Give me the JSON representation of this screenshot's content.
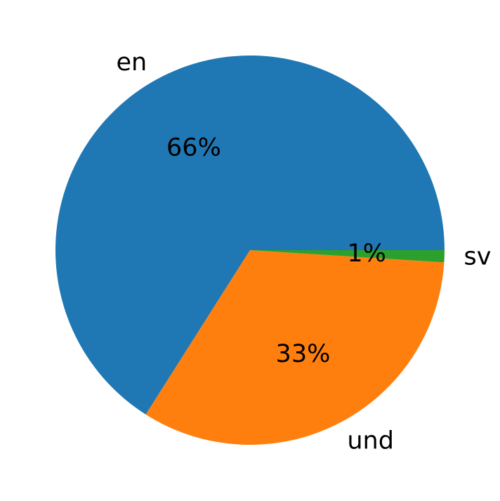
{
  "chart_data": {
    "type": "pie",
    "categories": [
      "en",
      "und",
      "sv"
    ],
    "values": [
      66,
      33,
      1
    ],
    "value_labels": [
      "66%",
      "33%",
      "1%"
    ],
    "colors": [
      "#1f77b4",
      "#ff7f0e",
      "#2ca02c"
    ],
    "start_angle_deg": 0,
    "direction": "counterclockwise",
    "legend": "none"
  }
}
